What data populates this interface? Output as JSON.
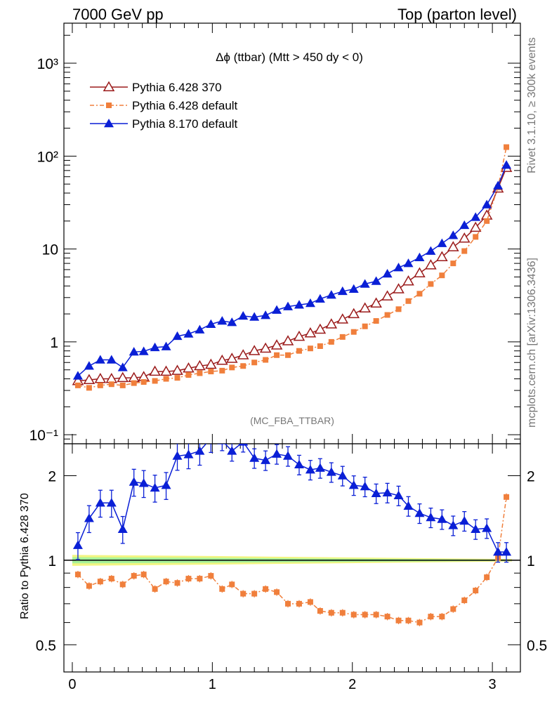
{
  "header": {
    "left": "7000 GeV pp",
    "right": "Top (parton level)"
  },
  "side": {
    "rivet": "Rivet 3.1.10, ≥ 300k events",
    "mcplots": "mcplots.cern.ch [arXiv:1306.3436]"
  },
  "plot_title": "Δϕ (ttbar) (Mtt > 450 dy < 0)",
  "watermark": "(MC_FBA_TTBAR)",
  "ratio_label": "Ratio to Pythia 6.428 370",
  "colors": {
    "p6_370": "#9b1b1b",
    "p6_default": "#f07f3c",
    "p8": "#0a1fd6",
    "band_outer": "#f2f582",
    "band_inner": "#a6f29a"
  },
  "chart_data": [
    {
      "type": "line",
      "panel": "main",
      "yscale": "log",
      "xlim": [
        -0.06,
        3.2
      ],
      "ylim": [
        0.08,
        2700
      ],
      "x_ticks": [
        0,
        1,
        2,
        3
      ],
      "y_ticks": [
        {
          "value": 0.1,
          "label": "10⁻¹"
        },
        {
          "value": 1,
          "label": "1"
        },
        {
          "value": 10,
          "label": "10"
        },
        {
          "value": 100,
          "label": "10²"
        },
        {
          "value": 1000,
          "label": "10³"
        }
      ],
      "legend_position": "top-left",
      "x": [
        0.04,
        0.12,
        0.2,
        0.28,
        0.36,
        0.44,
        0.51,
        0.59,
        0.67,
        0.75,
        0.83,
        0.91,
        0.99,
        1.07,
        1.14,
        1.22,
        1.3,
        1.38,
        1.46,
        1.54,
        1.62,
        1.7,
        1.77,
        1.85,
        1.93,
        2.01,
        2.09,
        2.17,
        2.25,
        2.33,
        2.4,
        2.48,
        2.56,
        2.64,
        2.72,
        2.8,
        2.88,
        2.96,
        3.04,
        3.1
      ],
      "series": [
        {
          "name": "Pythia 6.428 370",
          "marker": "triangle-open",
          "values": [
            0.38,
            0.39,
            0.4,
            0.4,
            0.41,
            0.41,
            0.42,
            0.48,
            0.48,
            0.49,
            0.52,
            0.55,
            0.57,
            0.63,
            0.66,
            0.72,
            0.8,
            0.85,
            0.92,
            1.02,
            1.14,
            1.24,
            1.36,
            1.55,
            1.75,
            2.0,
            2.3,
            2.6,
            3.1,
            3.7,
            4.5,
            5.5,
            6.7,
            8.2,
            10.5,
            13.0,
            17.0,
            23.0,
            45.0,
            75.0
          ]
        },
        {
          "name": "Pythia 6.428 default",
          "marker": "square",
          "values": [
            0.34,
            0.32,
            0.34,
            0.35,
            0.34,
            0.36,
            0.37,
            0.38,
            0.4,
            0.41,
            0.44,
            0.46,
            0.48,
            0.49,
            0.53,
            0.55,
            0.6,
            0.64,
            0.72,
            0.72,
            0.8,
            0.85,
            0.9,
            1.0,
            1.13,
            1.28,
            1.47,
            1.68,
            1.95,
            2.25,
            2.75,
            3.3,
            4.2,
            5.2,
            7.0,
            9.5,
            13.5,
            20.0,
            46.0,
            125.0
          ]
        },
        {
          "name": "Pythia 8.170 default",
          "marker": "triangle-filled",
          "values": [
            0.43,
            0.55,
            0.64,
            0.64,
            0.53,
            0.78,
            0.79,
            0.87,
            0.89,
            1.15,
            1.22,
            1.35,
            1.55,
            1.68,
            1.62,
            1.9,
            1.85,
            1.93,
            2.2,
            2.4,
            2.5,
            2.6,
            2.9,
            3.2,
            3.5,
            3.7,
            4.2,
            4.5,
            5.4,
            6.3,
            7.0,
            8.1,
            9.5,
            11.5,
            14.0,
            18.0,
            22.0,
            30.0,
            48.0,
            80.0
          ]
        }
      ]
    },
    {
      "type": "line",
      "panel": "ratio",
      "yscale": "log",
      "xlim": [
        -0.06,
        3.2
      ],
      "ylim": [
        0.4,
        2.6
      ],
      "ylabel": "Ratio to Pythia 6.428 370",
      "x_ticks": [
        0,
        1,
        2,
        3
      ],
      "y_ticks": [
        {
          "value": 0.5,
          "label": "0.5"
        },
        {
          "value": 1,
          "label": "1"
        },
        {
          "value": 2,
          "label": "2"
        }
      ],
      "x": [
        0.04,
        0.12,
        0.2,
        0.28,
        0.36,
        0.44,
        0.51,
        0.59,
        0.67,
        0.75,
        0.83,
        0.91,
        0.99,
        1.07,
        1.14,
        1.22,
        1.3,
        1.38,
        1.46,
        1.54,
        1.62,
        1.7,
        1.77,
        1.85,
        1.93,
        2.01,
        2.09,
        2.17,
        2.25,
        2.33,
        2.4,
        2.48,
        2.56,
        2.64,
        2.72,
        2.8,
        2.88,
        2.96,
        3.04,
        3.1
      ],
      "series": [
        {
          "name": "Pythia 6.428 default",
          "marker": "square",
          "values": [
            0.89,
            0.81,
            0.84,
            0.86,
            0.82,
            0.88,
            0.89,
            0.79,
            0.84,
            0.83,
            0.86,
            0.86,
            0.88,
            0.79,
            0.82,
            0.76,
            0.76,
            0.79,
            0.77,
            0.7,
            0.7,
            0.71,
            0.66,
            0.65,
            0.65,
            0.64,
            0.64,
            0.64,
            0.63,
            0.61,
            0.61,
            0.6,
            0.63,
            0.63,
            0.67,
            0.72,
            0.78,
            0.87,
            1.02,
            1.68
          ]
        },
        {
          "name": "Pythia 8.170 default",
          "marker": "triangle-filled",
          "values": [
            1.13,
            1.41,
            1.6,
            1.6,
            1.29,
            1.9,
            1.88,
            1.81,
            1.85,
            2.35,
            2.38,
            2.45,
            2.72,
            2.67,
            2.45,
            2.64,
            2.31,
            2.27,
            2.39,
            2.35,
            2.19,
            2.1,
            2.13,
            2.06,
            2.0,
            1.85,
            1.83,
            1.73,
            1.74,
            1.7,
            1.56,
            1.47,
            1.42,
            1.4,
            1.33,
            1.38,
            1.29,
            1.3,
            1.07,
            1.07
          ]
        }
      ]
    }
  ]
}
